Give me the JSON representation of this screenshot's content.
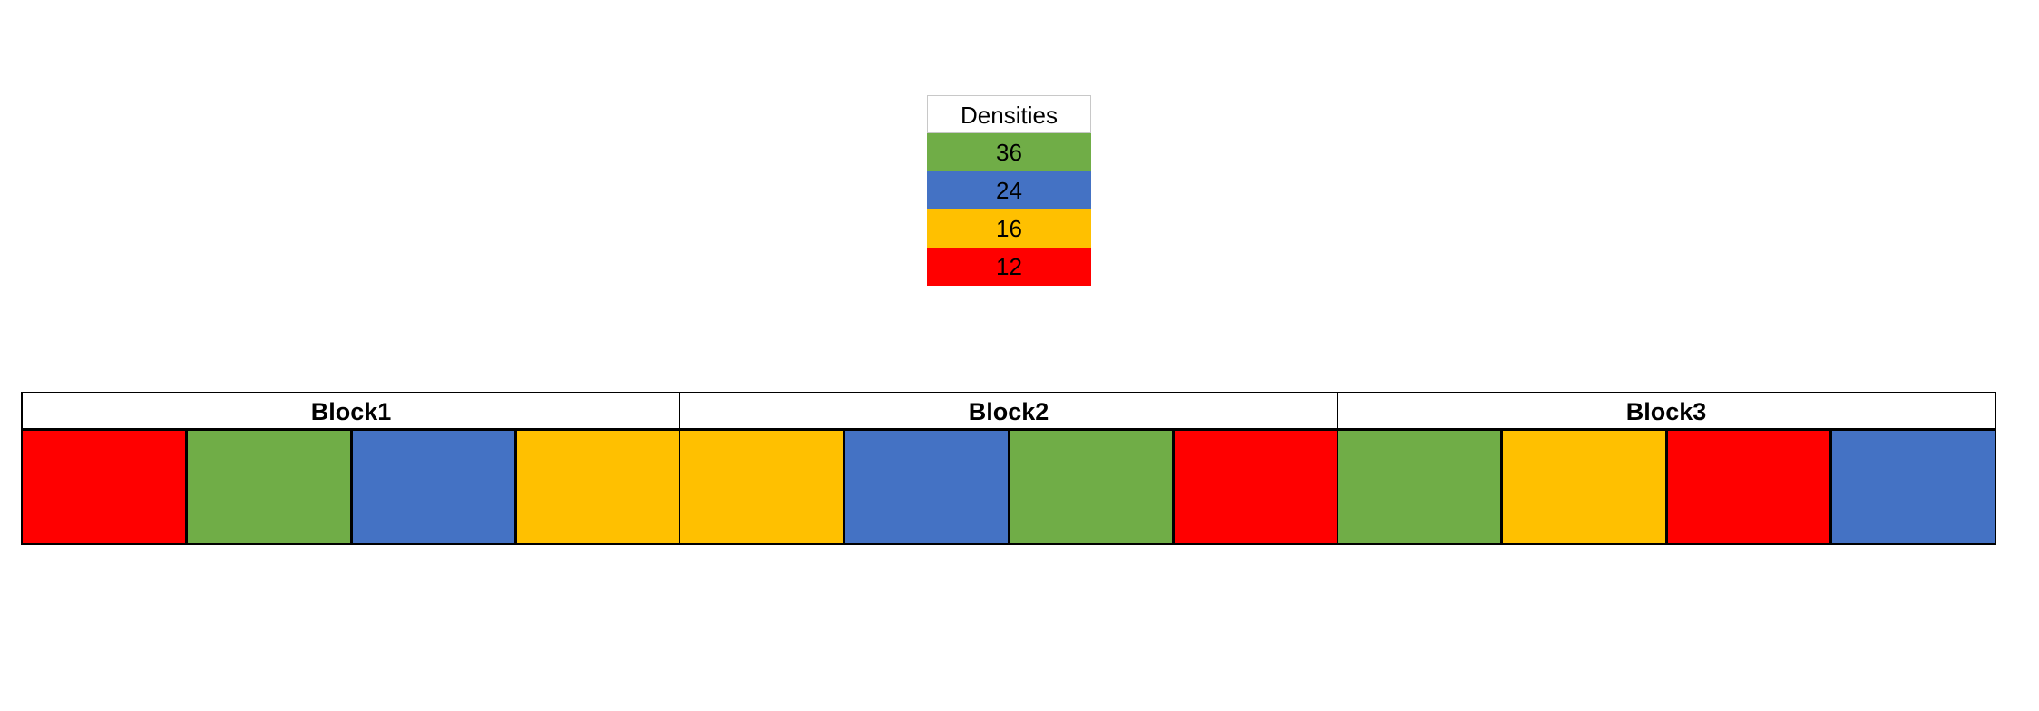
{
  "legend": {
    "title": "Densities",
    "items": [
      {
        "label": "36",
        "color": "#70ad47"
      },
      {
        "label": "24",
        "color": "#4472c4"
      },
      {
        "label": "16",
        "color": "#ffc000"
      },
      {
        "label": "12",
        "color": "#ff0000"
      }
    ]
  },
  "blocks": [
    {
      "name": "Block1",
      "cells": [
        "#ff0000",
        "#70ad47",
        "#4472c4",
        "#ffc000"
      ]
    },
    {
      "name": "Block2",
      "cells": [
        "#ffc000",
        "#4472c4",
        "#70ad47",
        "#ff0000"
      ]
    },
    {
      "name": "Block3",
      "cells": [
        "#70ad47",
        "#ffc000",
        "#ff0000",
        "#4472c4"
      ]
    }
  ]
}
